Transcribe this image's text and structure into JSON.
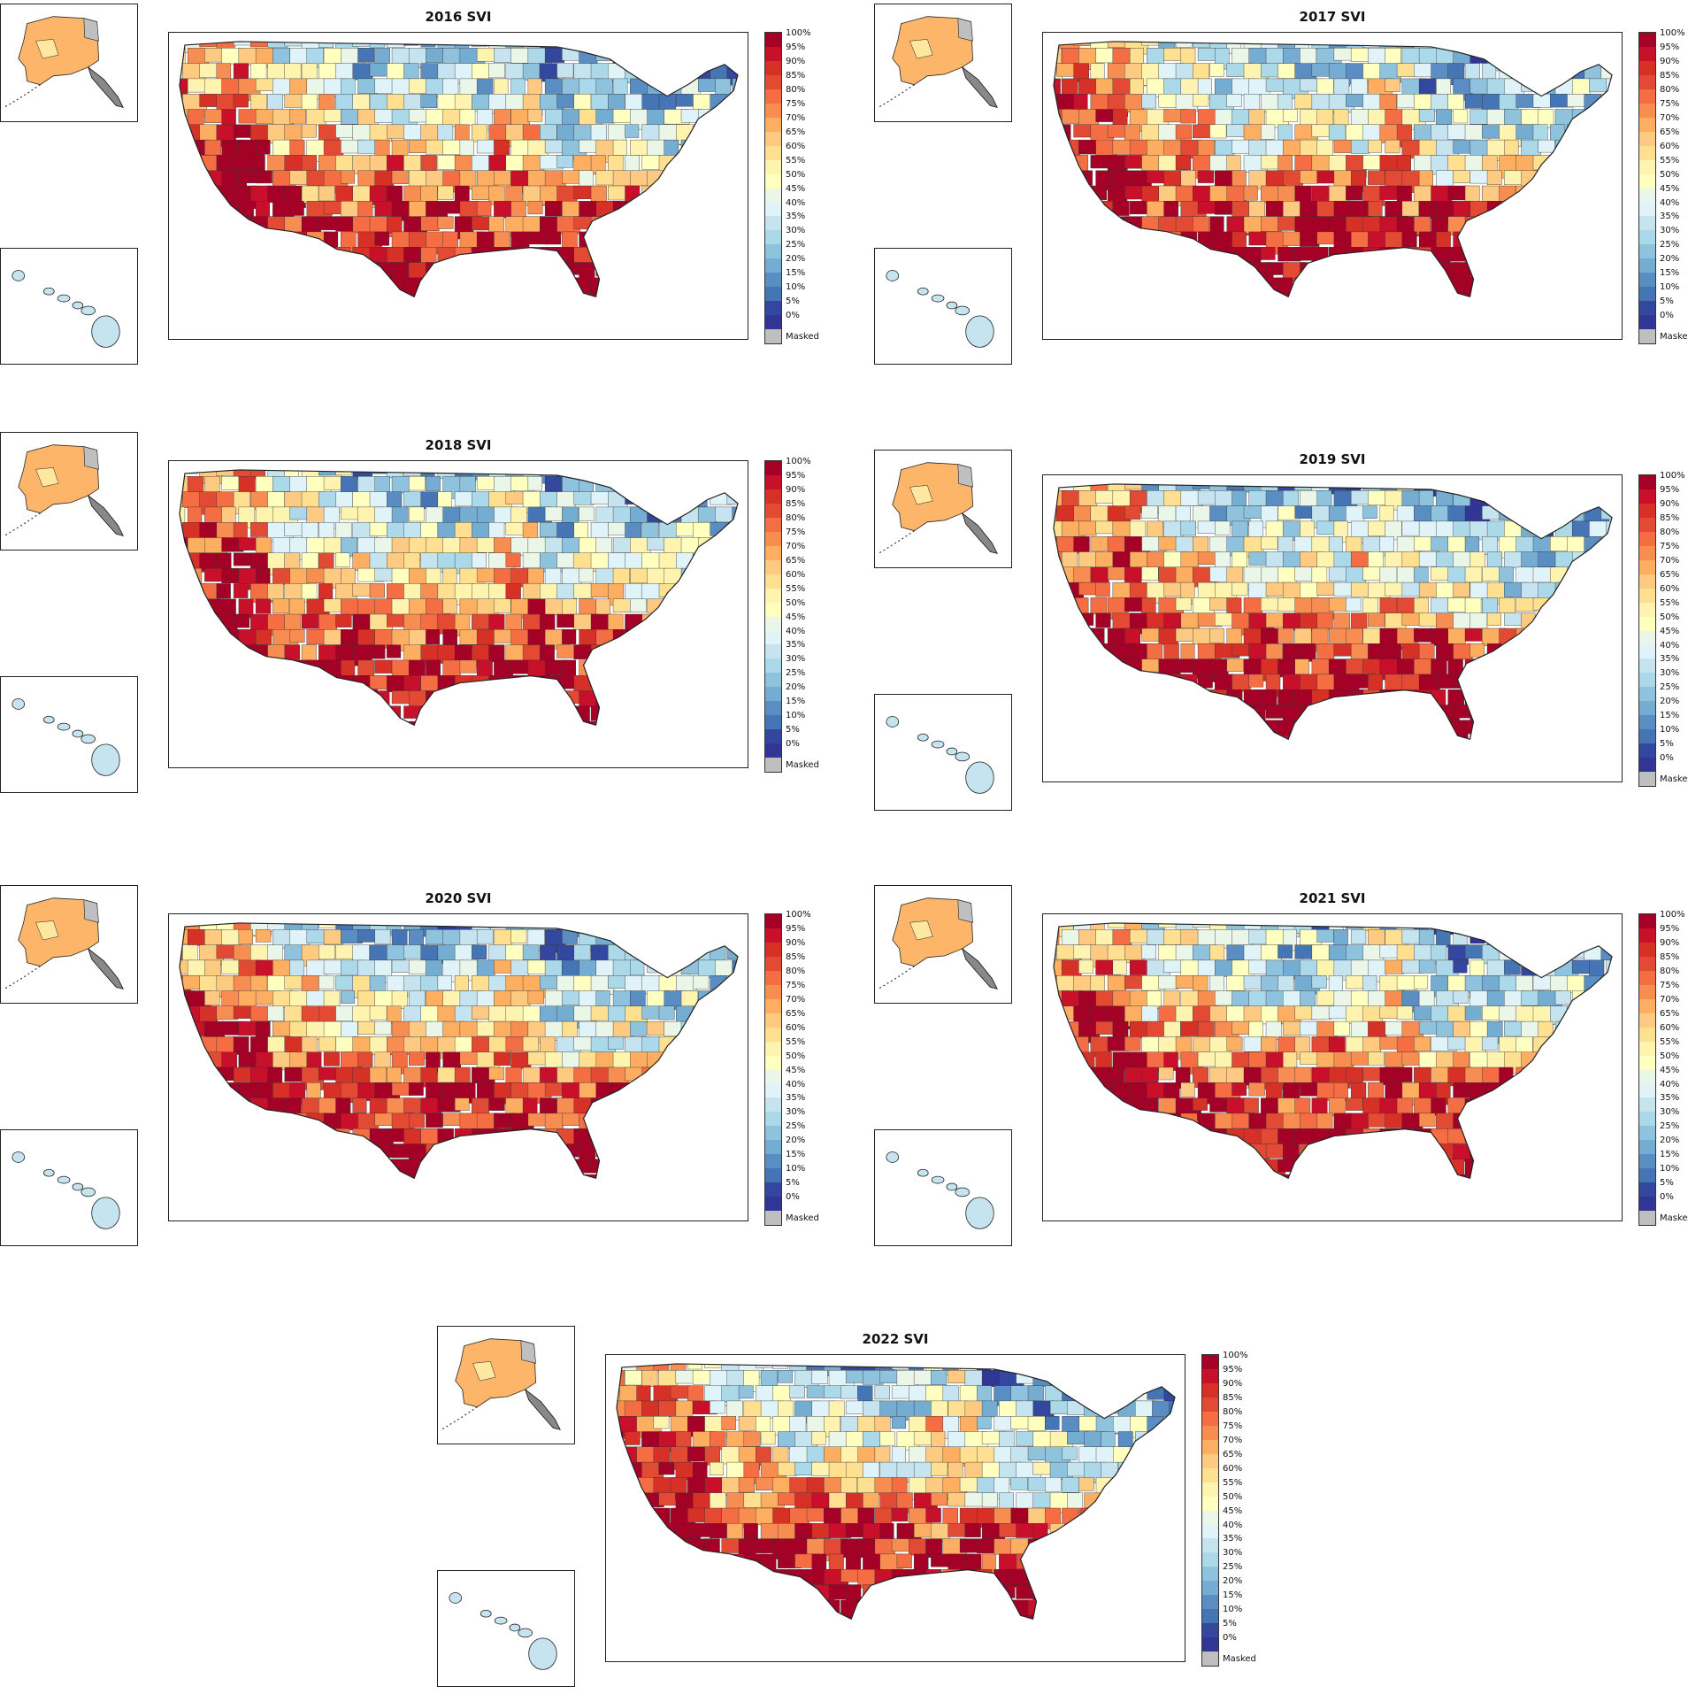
{
  "panels": [
    {
      "title": "2016 SVI"
    },
    {
      "title": "2017 SVI"
    },
    {
      "title": "2018 SVI"
    },
    {
      "title": "2019 SVI"
    },
    {
      "title": "2020 SVI"
    },
    {
      "title": "2021 SVI"
    },
    {
      "title": "2022 SVI"
    }
  ],
  "colorbar": {
    "labels": [
      "100%",
      "95%",
      "90%",
      "85%",
      "80%",
      "75%",
      "70%",
      "65%",
      "60%",
      "55%",
      "50%",
      "45%",
      "40%",
      "35%",
      "30%",
      "25%",
      "20%",
      "15%",
      "10%",
      "5%",
      "0%",
      "Masked"
    ],
    "colors": [
      "#a50026",
      "#c8102a",
      "#d73027",
      "#e34a33",
      "#f46d43",
      "#f88d52",
      "#fdae61",
      "#fec980",
      "#fee090",
      "#fff3b0",
      "#ffffbf",
      "#eaf6e8",
      "#e0f3f8",
      "#c6e4ef",
      "#abd9e9",
      "#8fc3dd",
      "#74add1",
      "#5a8ec3",
      "#4575b4",
      "#33479e",
      "#313695"
    ],
    "masked_color": "#bfbfbf"
  },
  "layer_colors": {
    "outline": "#222222",
    "alaska_main": "#fdb56a",
    "alaska_north": "#bfbfbf",
    "alaska_light": "#fee8a0",
    "hawaii": "#c6e4ef"
  }
}
